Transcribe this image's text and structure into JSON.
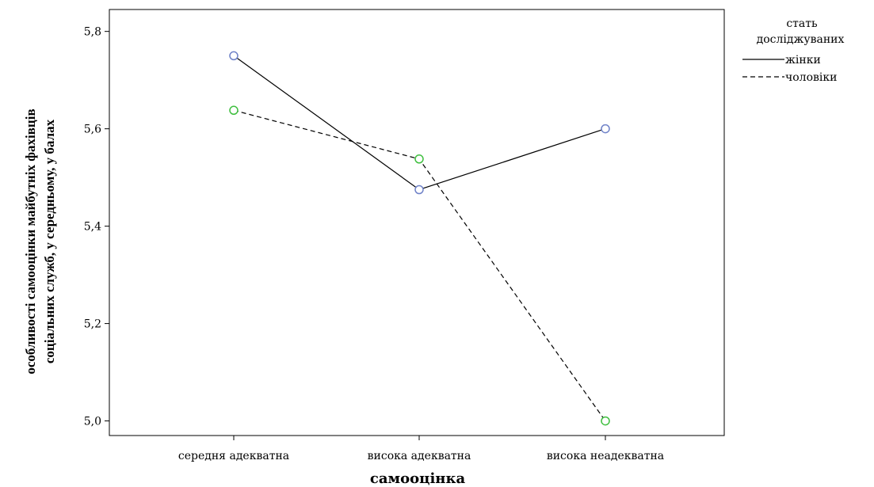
{
  "chart_data": {
    "type": "line",
    "categories": [
      "середня адекватна",
      "висока адекватна",
      "висока неадекватна"
    ],
    "series": [
      {
        "name": "жінки",
        "values": [
          5.75,
          5.475,
          5.6
        ],
        "line_style": "solid",
        "marker_color": "#6f82c8"
      },
      {
        "name": "чоловіки",
        "values": [
          5.638,
          5.538,
          5.0
        ],
        "line_style": "dashed",
        "marker_color": "#3fbf3f"
      }
    ],
    "xlabel": "самооцінка",
    "ylabel_lines": [
      "особливості самооцінки майбутніх фахівців",
      "соціальних служб, у середньому, у балах"
    ],
    "yticks": [
      5.0,
      5.2,
      5.4,
      5.6,
      5.8
    ],
    "ytick_labels": [
      "5,0",
      "5,2",
      "5,4",
      "5,6",
      "5,8"
    ],
    "ylim": [
      4.97,
      5.845
    ],
    "grid": false,
    "legend": {
      "title_lines": [
        "стать",
        "досліджуваних"
      ],
      "placement": "right"
    }
  }
}
